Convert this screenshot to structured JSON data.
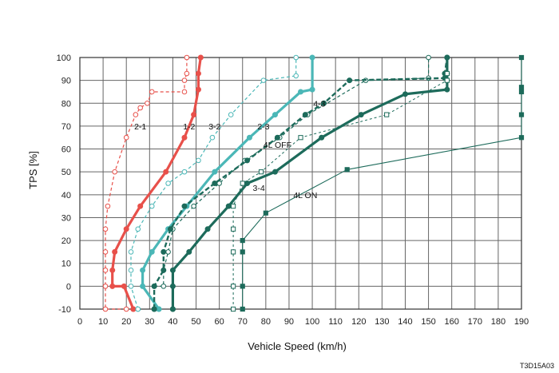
{
  "chart_data": {
    "type": "line",
    "xlabel": "Vehicle Speed (km/h)",
    "ylabel": "TPS [%]",
    "xlim": [
      0,
      190
    ],
    "ylim": [
      -10,
      100
    ],
    "xticks": [
      0,
      10,
      20,
      30,
      40,
      50,
      60,
      70,
      80,
      90,
      100,
      110,
      120,
      130,
      140,
      150,
      160,
      170,
      180,
      190
    ],
    "yticks": [
      -10,
      0,
      10,
      20,
      30,
      40,
      50,
      60,
      70,
      80,
      90,
      100
    ],
    "grid": true,
    "figure_code": "T3D15A03",
    "annotations": [
      {
        "text": "2-1",
        "x": 26,
        "y": 70
      },
      {
        "text": "1-2",
        "x": 47,
        "y": 70
      },
      {
        "text": "3-2",
        "x": 58,
        "y": 70
      },
      {
        "text": "2-3",
        "x": 79,
        "y": 70
      },
      {
        "text": "4-3",
        "x": 103,
        "y": 80
      },
      {
        "text": "4L OFF",
        "x": 85,
        "y": 62
      },
      {
        "text": "3-4",
        "x": 77,
        "y": 43
      },
      {
        "text": "4L ON",
        "x": 97,
        "y": 40
      }
    ],
    "series": [
      {
        "color": "#e8504a",
        "style": "dashed",
        "marker": "open-circle",
        "x": [
          20,
          11,
          11,
          11,
          11,
          11,
          12,
          15,
          20,
          24,
          26,
          29,
          31,
          45,
          45,
          46,
          46
        ],
        "y": [
          -10,
          -10,
          0,
          7,
          15,
          25,
          35,
          50,
          65,
          75,
          78,
          80,
          85,
          85,
          90,
          93,
          100
        ]
      },
      {
        "color": "#e8504a",
        "style": "solid-thick",
        "marker": "filled-circle",
        "x": [
          23,
          23,
          19,
          14,
          14,
          15,
          20,
          26,
          37,
          45,
          49,
          51,
          51,
          52
        ],
        "y": [
          -10,
          -10,
          0,
          0,
          7,
          15,
          25,
          35,
          50,
          65,
          75,
          86,
          93,
          100
        ]
      },
      {
        "color": "#4bb7b7",
        "style": "dashed",
        "marker": "open-circle",
        "x": [
          25,
          25,
          22,
          22,
          22,
          25,
          31,
          38,
          45,
          51,
          57,
          65,
          79,
          93,
          93
        ],
        "y": [
          -10,
          -10,
          0,
          7,
          15,
          25,
          35,
          45,
          50,
          55,
          65,
          75,
          90,
          92,
          100
        ]
      },
      {
        "color": "#4bb7b7",
        "style": "solid-thick",
        "marker": "filled-circle",
        "x": [
          34,
          34,
          27,
          27,
          31,
          38,
          46,
          58,
          73,
          84,
          95,
          100,
          100
        ],
        "y": [
          -10,
          -10,
          0,
          7,
          15,
          25,
          35,
          50,
          65,
          75,
          85,
          86,
          100
        ]
      },
      {
        "color": "#1d6b5b",
        "style": "dashed",
        "marker": "open-circle",
        "x": [
          32,
          32,
          36,
          36,
          38,
          40,
          49,
          60,
          71,
          86,
          98,
          123,
          150,
          150
        ],
        "y": [
          0,
          0,
          0,
          7,
          15,
          25,
          35,
          45,
          55,
          65,
          75,
          90,
          91,
          100
        ]
      },
      {
        "color": "#1d6b5b",
        "style": "dashed-thick",
        "marker": "filled-circle",
        "x": [
          32,
          32,
          32,
          36,
          36,
          39,
          45,
          58,
          72,
          85,
          97,
          105,
          116,
          157,
          157,
          158
        ],
        "y": [
          -10,
          -10,
          0,
          7,
          15,
          25,
          35,
          45,
          55,
          65,
          75,
          80,
          90,
          91,
          93,
          100
        ]
      },
      {
        "color": "#1d6b5b",
        "style": "solid-thick",
        "marker": "filled-circle",
        "x": [
          40,
          40,
          40,
          40,
          47,
          55,
          64,
          72,
          84,
          104,
          121,
          140,
          158,
          158,
          158
        ],
        "y": [
          -10,
          -10,
          0,
          7,
          15,
          25,
          35,
          45,
          50,
          65,
          75,
          84,
          86,
          93,
          100
        ]
      },
      {
        "color": "#1d6b5b",
        "style": "dashed-thin",
        "marker": "open-square",
        "x": [
          66,
          66,
          66,
          66,
          66,
          70,
          78,
          95,
          132,
          158,
          158
        ],
        "y": [
          -10,
          0,
          15,
          25,
          35,
          45,
          50,
          65,
          75,
          90,
          93
        ]
      },
      {
        "color": "#1d6b5b",
        "style": "solid-thin",
        "marker": "filled-square",
        "x": [
          70,
          70,
          70,
          70,
          80,
          115,
          190,
          190,
          190,
          190,
          190
        ],
        "y": [
          -10,
          0,
          15,
          20,
          32,
          51,
          65,
          75,
          85,
          87,
          100
        ]
      }
    ]
  }
}
